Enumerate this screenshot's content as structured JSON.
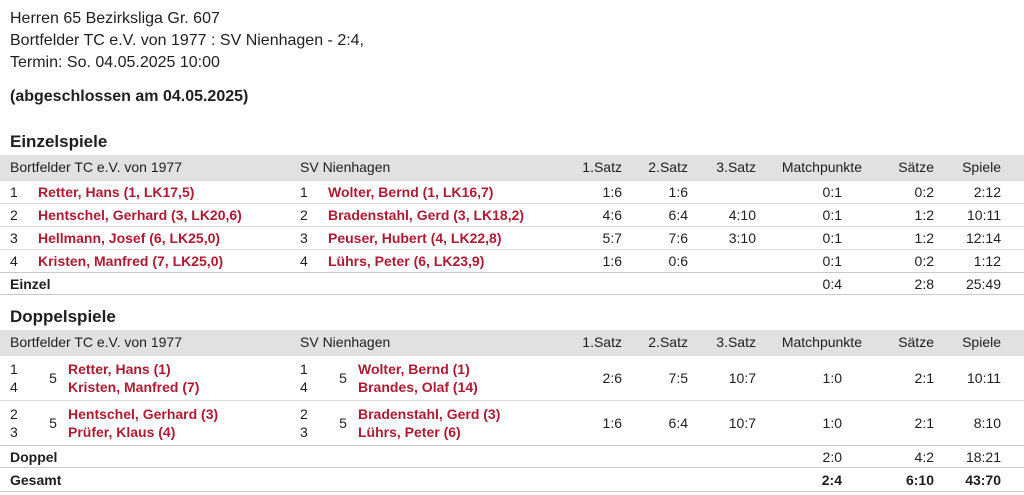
{
  "header": {
    "league": "Herren 65 Bezirksliga Gr. 607",
    "matchup": "Bortfelder TC e.V. von 1977 : SV Nienhagen - 2:4,",
    "date": "Termin: So. 04.05.2025 10:00",
    "status": "(abgeschlossen am 04.05.2025)"
  },
  "columns": {
    "home_team": "Bortfelder TC e.V. von 1977",
    "guest_team": "SV Nienhagen",
    "satz1": "1.Satz",
    "satz2": "2.Satz",
    "satz3": "3.Satz",
    "matchpunkte": "Matchpunkte",
    "saetze": "Sätze",
    "spiele": "Spiele"
  },
  "colors": {
    "accent_red": "#ad1b32",
    "header_bg": "#e1e1e1"
  },
  "singles": {
    "title": "Einzelspiele",
    "rows": [
      {
        "pos_home": "1",
        "home": "Retter, Hans (1, LK17,5)",
        "pos_guest": "1",
        "guest": "Wolter, Bernd (1, LK16,7)",
        "s1": "1:6",
        "s2": "1:6",
        "s3": "",
        "mp": "0:1",
        "sets": "0:2",
        "games": "2:12"
      },
      {
        "pos_home": "2",
        "home": "Hentschel, Gerhard (3, LK20,6)",
        "pos_guest": "2",
        "guest": "Bradenstahl, Gerd (3, LK18,2)",
        "s1": "4:6",
        "s2": "6:4",
        "s3": "4:10",
        "mp": "0:1",
        "sets": "1:2",
        "games": "10:11"
      },
      {
        "pos_home": "3",
        "home": "Hellmann, Josef (6, LK25,0)",
        "pos_guest": "3",
        "guest": "Peuser, Hubert (4, LK22,8)",
        "s1": "5:7",
        "s2": "7:6",
        "s3": "3:10",
        "mp": "0:1",
        "sets": "1:2",
        "games": "12:14"
      },
      {
        "pos_home": "4",
        "home": "Kristen, Manfred (7, LK25,0)",
        "pos_guest": "4",
        "guest": "Lührs, Peter (6, LK23,9)",
        "s1": "1:6",
        "s2": "0:6",
        "s3": "",
        "mp": "0:1",
        "sets": "0:2",
        "games": "1:12"
      }
    ],
    "summary": {
      "label": "Einzel",
      "mp": "0:4",
      "sets": "2:8",
      "games": "25:49"
    }
  },
  "doubles": {
    "title": "Doppelspiele",
    "rows": [
      {
        "home_pos1": "1",
        "home_pos2": "4",
        "home_sum": "5",
        "home1": "Retter, Hans (1)",
        "home2": "Kristen, Manfred (7)",
        "guest_pos1": "1",
        "guest_pos2": "4",
        "guest_sum": "5",
        "guest1": "Wolter, Bernd (1)",
        "guest2": "Brandes, Olaf (14)",
        "s1": "2:6",
        "s2": "7:5",
        "s3": "10:7",
        "mp": "1:0",
        "sets": "2:1",
        "games": "10:11"
      },
      {
        "home_pos1": "2",
        "home_pos2": "3",
        "home_sum": "5",
        "home1": "Hentschel, Gerhard (3)",
        "home2": "Prüfer, Klaus (4)",
        "guest_pos1": "2",
        "guest_pos2": "3",
        "guest_sum": "5",
        "guest1": "Bradenstahl, Gerd (3)",
        "guest2": "Lührs, Peter (6)",
        "s1": "1:6",
        "s2": "6:4",
        "s3": "10:7",
        "mp": "1:0",
        "sets": "2:1",
        "games": "8:10"
      }
    ],
    "summary": {
      "label": "Doppel",
      "mp": "2:0",
      "sets": "4:2",
      "games": "18:21"
    }
  },
  "total": {
    "label": "Gesamt",
    "mp": "2:4",
    "sets": "6:10",
    "games": "43:70"
  }
}
